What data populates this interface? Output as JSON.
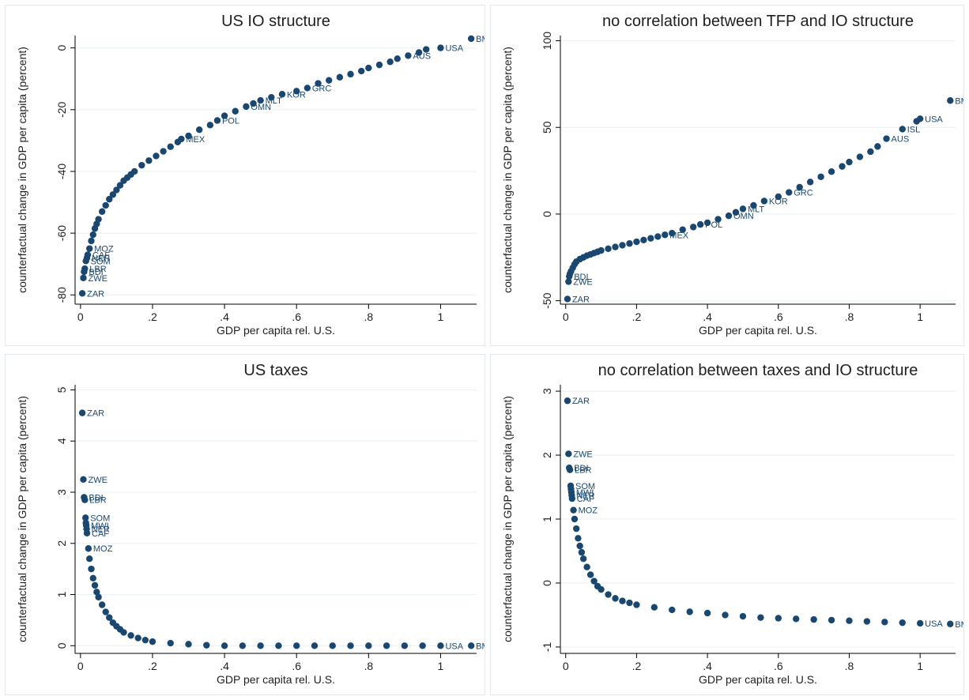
{
  "colors": {
    "marker": "#1a476f",
    "gridline": "#eaf2f3",
    "frame_bg": "#ffffff",
    "plot_bg": "#ffffff",
    "axis": "#000000"
  },
  "chart_data": [
    {
      "type": "scatter",
      "title": "US IO structure",
      "xlabel": "GDP per capita rel. U.S.",
      "ylabel": "counterfactual change in GDP per capita (percent)",
      "xlim": [
        -0.015,
        1.1
      ],
      "ylim": [
        -83,
        4
      ],
      "xticks": [
        0,
        0.2,
        0.4,
        0.6,
        0.8,
        1
      ],
      "xtick_labels": [
        "0",
        ".2",
        ".4",
        ".6",
        ".8",
        "1"
      ],
      "yticks": [
        -80,
        -60,
        -40,
        -20,
        0
      ],
      "ytick_labels": [
        "-80",
        "-60",
        "-40",
        "-20",
        "0"
      ],
      "grid": true,
      "points": [
        {
          "x": 0.005,
          "y": -79.5,
          "label": "ZAR"
        },
        {
          "x": 0.008,
          "y": -74.5,
          "label": "ZWE"
        },
        {
          "x": 0.01,
          "y": -72.5,
          "label": "BDI"
        },
        {
          "x": 0.012,
          "y": -71.5,
          "label": "LBR"
        },
        {
          "x": 0.015,
          "y": -69.0,
          "label": "SOM"
        },
        {
          "x": 0.018,
          "y": -68.0,
          "label": "NER"
        },
        {
          "x": 0.02,
          "y": -67.0,
          "label": "CAF"
        },
        {
          "x": 0.025,
          "y": -65.0,
          "label": "MOZ"
        },
        {
          "x": 0.03,
          "y": -62.5
        },
        {
          "x": 0.035,
          "y": -60.5
        },
        {
          "x": 0.04,
          "y": -58.5
        },
        {
          "x": 0.045,
          "y": -57.0
        },
        {
          "x": 0.05,
          "y": -55.5
        },
        {
          "x": 0.06,
          "y": -53.0
        },
        {
          "x": 0.07,
          "y": -51.0
        },
        {
          "x": 0.08,
          "y": -49.0
        },
        {
          "x": 0.09,
          "y": -47.5
        },
        {
          "x": 0.1,
          "y": -46.0
        },
        {
          "x": 0.11,
          "y": -44.5
        },
        {
          "x": 0.12,
          "y": -43.0
        },
        {
          "x": 0.13,
          "y": -42.0
        },
        {
          "x": 0.14,
          "y": -41.0
        },
        {
          "x": 0.15,
          "y": -40.0
        },
        {
          "x": 0.17,
          "y": -38.0
        },
        {
          "x": 0.19,
          "y": -36.5
        },
        {
          "x": 0.21,
          "y": -35.0
        },
        {
          "x": 0.23,
          "y": -33.5
        },
        {
          "x": 0.25,
          "y": -32.0
        },
        {
          "x": 0.27,
          "y": -30.5
        },
        {
          "x": 0.28,
          "y": -29.5,
          "label": "MEX"
        },
        {
          "x": 0.3,
          "y": -28.5
        },
        {
          "x": 0.33,
          "y": -26.5
        },
        {
          "x": 0.36,
          "y": -25.0
        },
        {
          "x": 0.38,
          "y": -23.5,
          "label": "POL"
        },
        {
          "x": 0.4,
          "y": -22.0
        },
        {
          "x": 0.43,
          "y": -20.5
        },
        {
          "x": 0.46,
          "y": -19.0,
          "label": "OMN"
        },
        {
          "x": 0.48,
          "y": -18.0
        },
        {
          "x": 0.5,
          "y": -17.0,
          "label": "MLT"
        },
        {
          "x": 0.53,
          "y": -16.0
        },
        {
          "x": 0.56,
          "y": -15.0,
          "label": "KOR"
        },
        {
          "x": 0.6,
          "y": -14.0
        },
        {
          "x": 0.63,
          "y": -13.0,
          "label": "GRC"
        },
        {
          "x": 0.66,
          "y": -11.5
        },
        {
          "x": 0.69,
          "y": -10.5
        },
        {
          "x": 0.72,
          "y": -9.5
        },
        {
          "x": 0.75,
          "y": -8.5
        },
        {
          "x": 0.78,
          "y": -7.5
        },
        {
          "x": 0.8,
          "y": -6.5
        },
        {
          "x": 0.83,
          "y": -5.5
        },
        {
          "x": 0.86,
          "y": -4.5
        },
        {
          "x": 0.88,
          "y": -3.5
        },
        {
          "x": 0.91,
          "y": -2.5,
          "label": "AUS"
        },
        {
          "x": 0.94,
          "y": -1.5
        },
        {
          "x": 0.96,
          "y": -0.5
        },
        {
          "x": 1.0,
          "y": 0.0,
          "label": "USA"
        },
        {
          "x": 1.085,
          "y": 3.0,
          "label": "BMU"
        }
      ]
    },
    {
      "type": "scatter",
      "title": "no correlation between TFP and IO structure",
      "xlabel": "GDP per capita rel. U.S.",
      "ylabel": "counterfactual change in GDP per capita (percent)",
      "xlim": [
        -0.015,
        1.1
      ],
      "ylim": [
        -52,
        103
      ],
      "xticks": [
        0,
        0.2,
        0.4,
        0.6,
        0.8,
        1
      ],
      "xtick_labels": [
        "0",
        ".2",
        ".4",
        ".6",
        ".8",
        "1"
      ],
      "yticks": [
        -50,
        0,
        50,
        100
      ],
      "ytick_labels": [
        "-50",
        "0",
        "50",
        "100"
      ],
      "grid": true,
      "points": [
        {
          "x": 0.005,
          "y": -49.0,
          "label": "ZAR"
        },
        {
          "x": 0.008,
          "y": -39.0,
          "label": "ZWE"
        },
        {
          "x": 0.01,
          "y": -36.0,
          "label": "BDI"
        },
        {
          "x": 0.012,
          "y": -34.5
        },
        {
          "x": 0.015,
          "y": -33.0
        },
        {
          "x": 0.02,
          "y": -31.0
        },
        {
          "x": 0.025,
          "y": -29.0
        },
        {
          "x": 0.03,
          "y": -27.5
        },
        {
          "x": 0.04,
          "y": -26.0
        },
        {
          "x": 0.05,
          "y": -25.0
        },
        {
          "x": 0.06,
          "y": -24.0
        },
        {
          "x": 0.07,
          "y": -23.3
        },
        {
          "x": 0.08,
          "y": -22.5
        },
        {
          "x": 0.09,
          "y": -21.8
        },
        {
          "x": 0.1,
          "y": -21.0
        },
        {
          "x": 0.12,
          "y": -20.0
        },
        {
          "x": 0.14,
          "y": -19.0
        },
        {
          "x": 0.16,
          "y": -18.0
        },
        {
          "x": 0.18,
          "y": -17.0
        },
        {
          "x": 0.2,
          "y": -16.0
        },
        {
          "x": 0.22,
          "y": -15.0
        },
        {
          "x": 0.24,
          "y": -14.0
        },
        {
          "x": 0.26,
          "y": -13.0
        },
        {
          "x": 0.28,
          "y": -12.0,
          "label": "MEX"
        },
        {
          "x": 0.3,
          "y": -11.0
        },
        {
          "x": 0.33,
          "y": -9.0
        },
        {
          "x": 0.36,
          "y": -7.5
        },
        {
          "x": 0.38,
          "y": -6.0,
          "label": "POL"
        },
        {
          "x": 0.4,
          "y": -5.0
        },
        {
          "x": 0.43,
          "y": -3.0
        },
        {
          "x": 0.46,
          "y": -1.0,
          "label": "OMN"
        },
        {
          "x": 0.48,
          "y": 1.0
        },
        {
          "x": 0.5,
          "y": 3.0,
          "label": "MLT"
        },
        {
          "x": 0.53,
          "y": 5.0
        },
        {
          "x": 0.56,
          "y": 7.5,
          "label": "KOR"
        },
        {
          "x": 0.6,
          "y": 10.0
        },
        {
          "x": 0.63,
          "y": 12.5,
          "label": "GRC"
        },
        {
          "x": 0.66,
          "y": 15.5
        },
        {
          "x": 0.69,
          "y": 18.5
        },
        {
          "x": 0.72,
          "y": 21.5
        },
        {
          "x": 0.75,
          "y": 24.5
        },
        {
          "x": 0.78,
          "y": 27.5
        },
        {
          "x": 0.8,
          "y": 30.0
        },
        {
          "x": 0.83,
          "y": 33.0
        },
        {
          "x": 0.86,
          "y": 36.0
        },
        {
          "x": 0.88,
          "y": 39.0
        },
        {
          "x": 0.905,
          "y": 43.5,
          "label": "AUS"
        },
        {
          "x": 0.95,
          "y": 49.0,
          "label": "ISL"
        },
        {
          "x": 0.99,
          "y": 53.5
        },
        {
          "x": 1.0,
          "y": 55.0,
          "label": "USA"
        },
        {
          "x": 1.085,
          "y": 65.5,
          "label": "BMU"
        }
      ]
    },
    {
      "type": "scatter",
      "title": "US taxes",
      "xlabel": "GDP per capita rel. U.S.",
      "ylabel": "counterfactual change in GDP per capita (percent)",
      "xlim": [
        -0.015,
        1.1
      ],
      "ylim": [
        -0.15,
        5.1
      ],
      "xticks": [
        0,
        0.2,
        0.4,
        0.6,
        0.8,
        1
      ],
      "xtick_labels": [
        "0",
        ".2",
        ".4",
        ".6",
        ".8",
        "1"
      ],
      "yticks": [
        0,
        1,
        2,
        3,
        4,
        5
      ],
      "ytick_labels": [
        "0",
        "1",
        "2",
        "3",
        "4",
        "5"
      ],
      "grid": true,
      "points": [
        {
          "x": 0.005,
          "y": 4.55,
          "label": "ZAR"
        },
        {
          "x": 0.008,
          "y": 3.25,
          "label": "ZWE"
        },
        {
          "x": 0.01,
          "y": 2.9,
          "label": "BDI"
        },
        {
          "x": 0.012,
          "y": 2.85,
          "label": "LBR"
        },
        {
          "x": 0.014,
          "y": 2.5,
          "label": "SOM"
        },
        {
          "x": 0.015,
          "y": 2.4
        },
        {
          "x": 0.016,
          "y": 2.35,
          "label": "MWI"
        },
        {
          "x": 0.017,
          "y": 2.28,
          "label": "NER"
        },
        {
          "x": 0.018,
          "y": 2.2,
          "label": "CAF"
        },
        {
          "x": 0.022,
          "y": 1.9,
          "label": "MOZ"
        },
        {
          "x": 0.025,
          "y": 1.7
        },
        {
          "x": 0.03,
          "y": 1.5
        },
        {
          "x": 0.035,
          "y": 1.32
        },
        {
          "x": 0.04,
          "y": 1.18
        },
        {
          "x": 0.045,
          "y": 1.05
        },
        {
          "x": 0.05,
          "y": 0.95
        },
        {
          "x": 0.06,
          "y": 0.8
        },
        {
          "x": 0.07,
          "y": 0.66
        },
        {
          "x": 0.08,
          "y": 0.55
        },
        {
          "x": 0.09,
          "y": 0.45
        },
        {
          "x": 0.1,
          "y": 0.38
        },
        {
          "x": 0.11,
          "y": 0.32
        },
        {
          "x": 0.12,
          "y": 0.26
        },
        {
          "x": 0.14,
          "y": 0.2
        },
        {
          "x": 0.16,
          "y": 0.15
        },
        {
          "x": 0.18,
          "y": 0.11
        },
        {
          "x": 0.2,
          "y": 0.08
        },
        {
          "x": 0.25,
          "y": 0.05
        },
        {
          "x": 0.3,
          "y": 0.03
        },
        {
          "x": 0.35,
          "y": 0.01
        },
        {
          "x": 0.4,
          "y": 0.0
        },
        {
          "x": 0.45,
          "y": 0.0
        },
        {
          "x": 0.5,
          "y": 0.0
        },
        {
          "x": 0.55,
          "y": 0.0
        },
        {
          "x": 0.6,
          "y": 0.0
        },
        {
          "x": 0.65,
          "y": 0.0
        },
        {
          "x": 0.7,
          "y": 0.0
        },
        {
          "x": 0.75,
          "y": 0.0
        },
        {
          "x": 0.8,
          "y": 0.0
        },
        {
          "x": 0.85,
          "y": 0.0
        },
        {
          "x": 0.9,
          "y": 0.0
        },
        {
          "x": 0.95,
          "y": 0.0
        },
        {
          "x": 1.0,
          "y": 0.0,
          "label": "USA"
        },
        {
          "x": 1.085,
          "y": 0.0,
          "label": "BMU"
        }
      ]
    },
    {
      "type": "scatter",
      "title": "no correlation between taxes and IO structure",
      "xlabel": "GDP per capita rel. U.S.",
      "ylabel": "counterfactual change in GDP per capita (percent)",
      "xlim": [
        -0.015,
        1.1
      ],
      "ylim": [
        -1.1,
        3.1
      ],
      "xticks": [
        0,
        0.2,
        0.4,
        0.6,
        0.8,
        1
      ],
      "xtick_labels": [
        "0",
        ".2",
        ".4",
        ".6",
        ".8",
        "1"
      ],
      "yticks": [
        -1,
        0,
        1,
        2,
        3
      ],
      "ytick_labels": [
        "-1",
        "0",
        "1",
        "2",
        "3"
      ],
      "grid": true,
      "points": [
        {
          "x": 0.005,
          "y": 2.85,
          "label": "ZAR"
        },
        {
          "x": 0.008,
          "y": 2.02,
          "label": "ZWE"
        },
        {
          "x": 0.01,
          "y": 1.8,
          "label": "BDI"
        },
        {
          "x": 0.012,
          "y": 1.77,
          "label": "LBR"
        },
        {
          "x": 0.014,
          "y": 1.52,
          "label": "SOM"
        },
        {
          "x": 0.015,
          "y": 1.47
        },
        {
          "x": 0.016,
          "y": 1.42,
          "label": "MWI"
        },
        {
          "x": 0.017,
          "y": 1.37,
          "label": "NER"
        },
        {
          "x": 0.018,
          "y": 1.32,
          "label": "CAF"
        },
        {
          "x": 0.022,
          "y": 1.14,
          "label": "MOZ"
        },
        {
          "x": 0.025,
          "y": 1.0
        },
        {
          "x": 0.03,
          "y": 0.85
        },
        {
          "x": 0.035,
          "y": 0.7
        },
        {
          "x": 0.04,
          "y": 0.58
        },
        {
          "x": 0.045,
          "y": 0.48
        },
        {
          "x": 0.05,
          "y": 0.38
        },
        {
          "x": 0.06,
          "y": 0.25
        },
        {
          "x": 0.07,
          "y": 0.13
        },
        {
          "x": 0.08,
          "y": 0.03
        },
        {
          "x": 0.09,
          "y": -0.05
        },
        {
          "x": 0.1,
          "y": -0.1
        },
        {
          "x": 0.12,
          "y": -0.18
        },
        {
          "x": 0.14,
          "y": -0.24
        },
        {
          "x": 0.16,
          "y": -0.28
        },
        {
          "x": 0.18,
          "y": -0.31
        },
        {
          "x": 0.2,
          "y": -0.34
        },
        {
          "x": 0.25,
          "y": -0.38
        },
        {
          "x": 0.3,
          "y": -0.42
        },
        {
          "x": 0.35,
          "y": -0.45
        },
        {
          "x": 0.4,
          "y": -0.47
        },
        {
          "x": 0.45,
          "y": -0.5
        },
        {
          "x": 0.5,
          "y": -0.52
        },
        {
          "x": 0.55,
          "y": -0.54
        },
        {
          "x": 0.6,
          "y": -0.55
        },
        {
          "x": 0.65,
          "y": -0.56
        },
        {
          "x": 0.7,
          "y": -0.57
        },
        {
          "x": 0.75,
          "y": -0.58
        },
        {
          "x": 0.8,
          "y": -0.59
        },
        {
          "x": 0.85,
          "y": -0.6
        },
        {
          "x": 0.9,
          "y": -0.61
        },
        {
          "x": 0.95,
          "y": -0.62
        },
        {
          "x": 1.0,
          "y": -0.63,
          "label": "USA"
        },
        {
          "x": 1.085,
          "y": -0.64,
          "label": "BMU"
        }
      ]
    }
  ]
}
